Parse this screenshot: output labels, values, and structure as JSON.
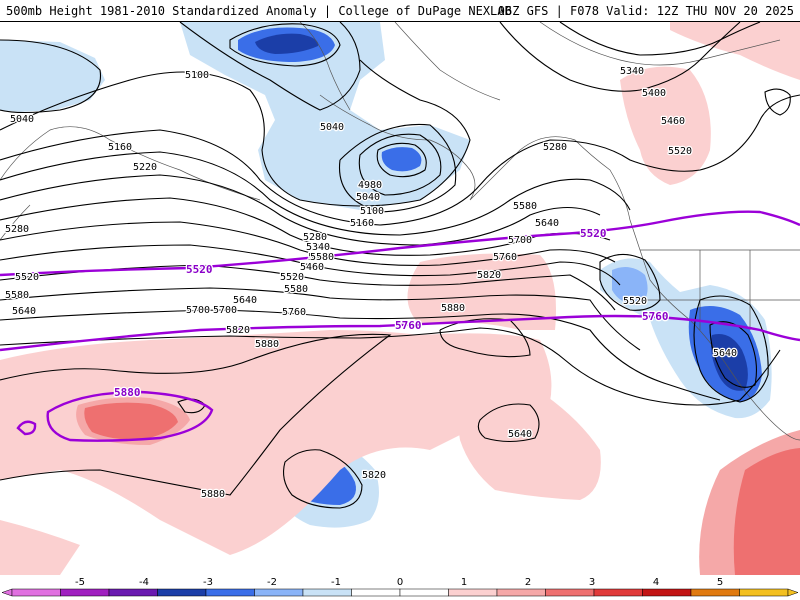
{
  "header": {
    "left_text": "500mb Height 1981-2010 Standardized Anomaly | College of DuPage NEXLAB",
    "right_text": "06Z GFS | F078 Valid: 12Z THU NOV 20 2025"
  },
  "colors": {
    "neg_1": "#c9e2f6",
    "neg_2": "#5b8df0",
    "neg_3": "#2a52c8",
    "neg_4": "#0f2a8c",
    "neg_5": "#7a20c0",
    "pos_1": "#fbd0d0",
    "pos_2": "#f58f8f",
    "pos_3": "#e35050",
    "pos_4": "#b81818",
    "pos_5": "#f0a020",
    "purple_contour": "#9b00d8",
    "black_contour": "#000000"
  },
  "contour_labels": [
    {
      "text": "5040"
    },
    {
      "text": "5100"
    },
    {
      "text": "5040"
    },
    {
      "text": "5160"
    },
    {
      "text": "5220"
    },
    {
      "text": "5280"
    },
    {
      "text": "4980"
    },
    {
      "text": "5040"
    },
    {
      "text": "5100"
    },
    {
      "text": "5160"
    },
    {
      "text": "5280"
    },
    {
      "text": "5340"
    },
    {
      "text": "5400"
    },
    {
      "text": "5460"
    },
    {
      "text": "5520"
    },
    {
      "text": "5580"
    },
    {
      "text": "5640"
    },
    {
      "text": "5700"
    },
    {
      "text": "5760"
    },
    {
      "text": "5820"
    },
    {
      "text": "5880"
    },
    {
      "text": "5280"
    },
    {
      "text": "5340"
    },
    {
      "text": "5400"
    },
    {
      "text": "5460"
    },
    {
      "text": "5520"
    },
    {
      "text": "5580"
    },
    {
      "text": "5640"
    },
    {
      "text": "5700"
    },
    {
      "text": "5760"
    },
    {
      "text": "5820"
    },
    {
      "text": "5880"
    },
    {
      "text": "5820"
    },
    {
      "text": "5880"
    },
    {
      "text": "5580"
    },
    {
      "text": "5640"
    },
    {
      "text": "5700"
    },
    {
      "text": "5640"
    },
    {
      "text": "5520"
    },
    {
      "text": "5580"
    },
    {
      "text": "5640"
    }
  ],
  "purple_labels": [
    {
      "text": "5520"
    },
    {
      "text": "5520"
    },
    {
      "text": "5760"
    },
    {
      "text": "5760"
    },
    {
      "text": "5880"
    }
  ],
  "colorbar": {
    "ticks": [
      "-5",
      "-4",
      "-3",
      "-2",
      "-1",
      "0",
      "1",
      "2",
      "3",
      "4",
      "5"
    ],
    "colors": [
      "#e070e0",
      "#a020c0",
      "#6a1ab0",
      "#1b3ea8",
      "#3a6ee8",
      "#8ab4f8",
      "#c9e2f6",
      "#ffffff",
      "#ffffff",
      "#fbd0d0",
      "#f5a8a8",
      "#ee7070",
      "#e03a3a",
      "#c21414",
      "#e07a10",
      "#f3c020"
    ]
  }
}
